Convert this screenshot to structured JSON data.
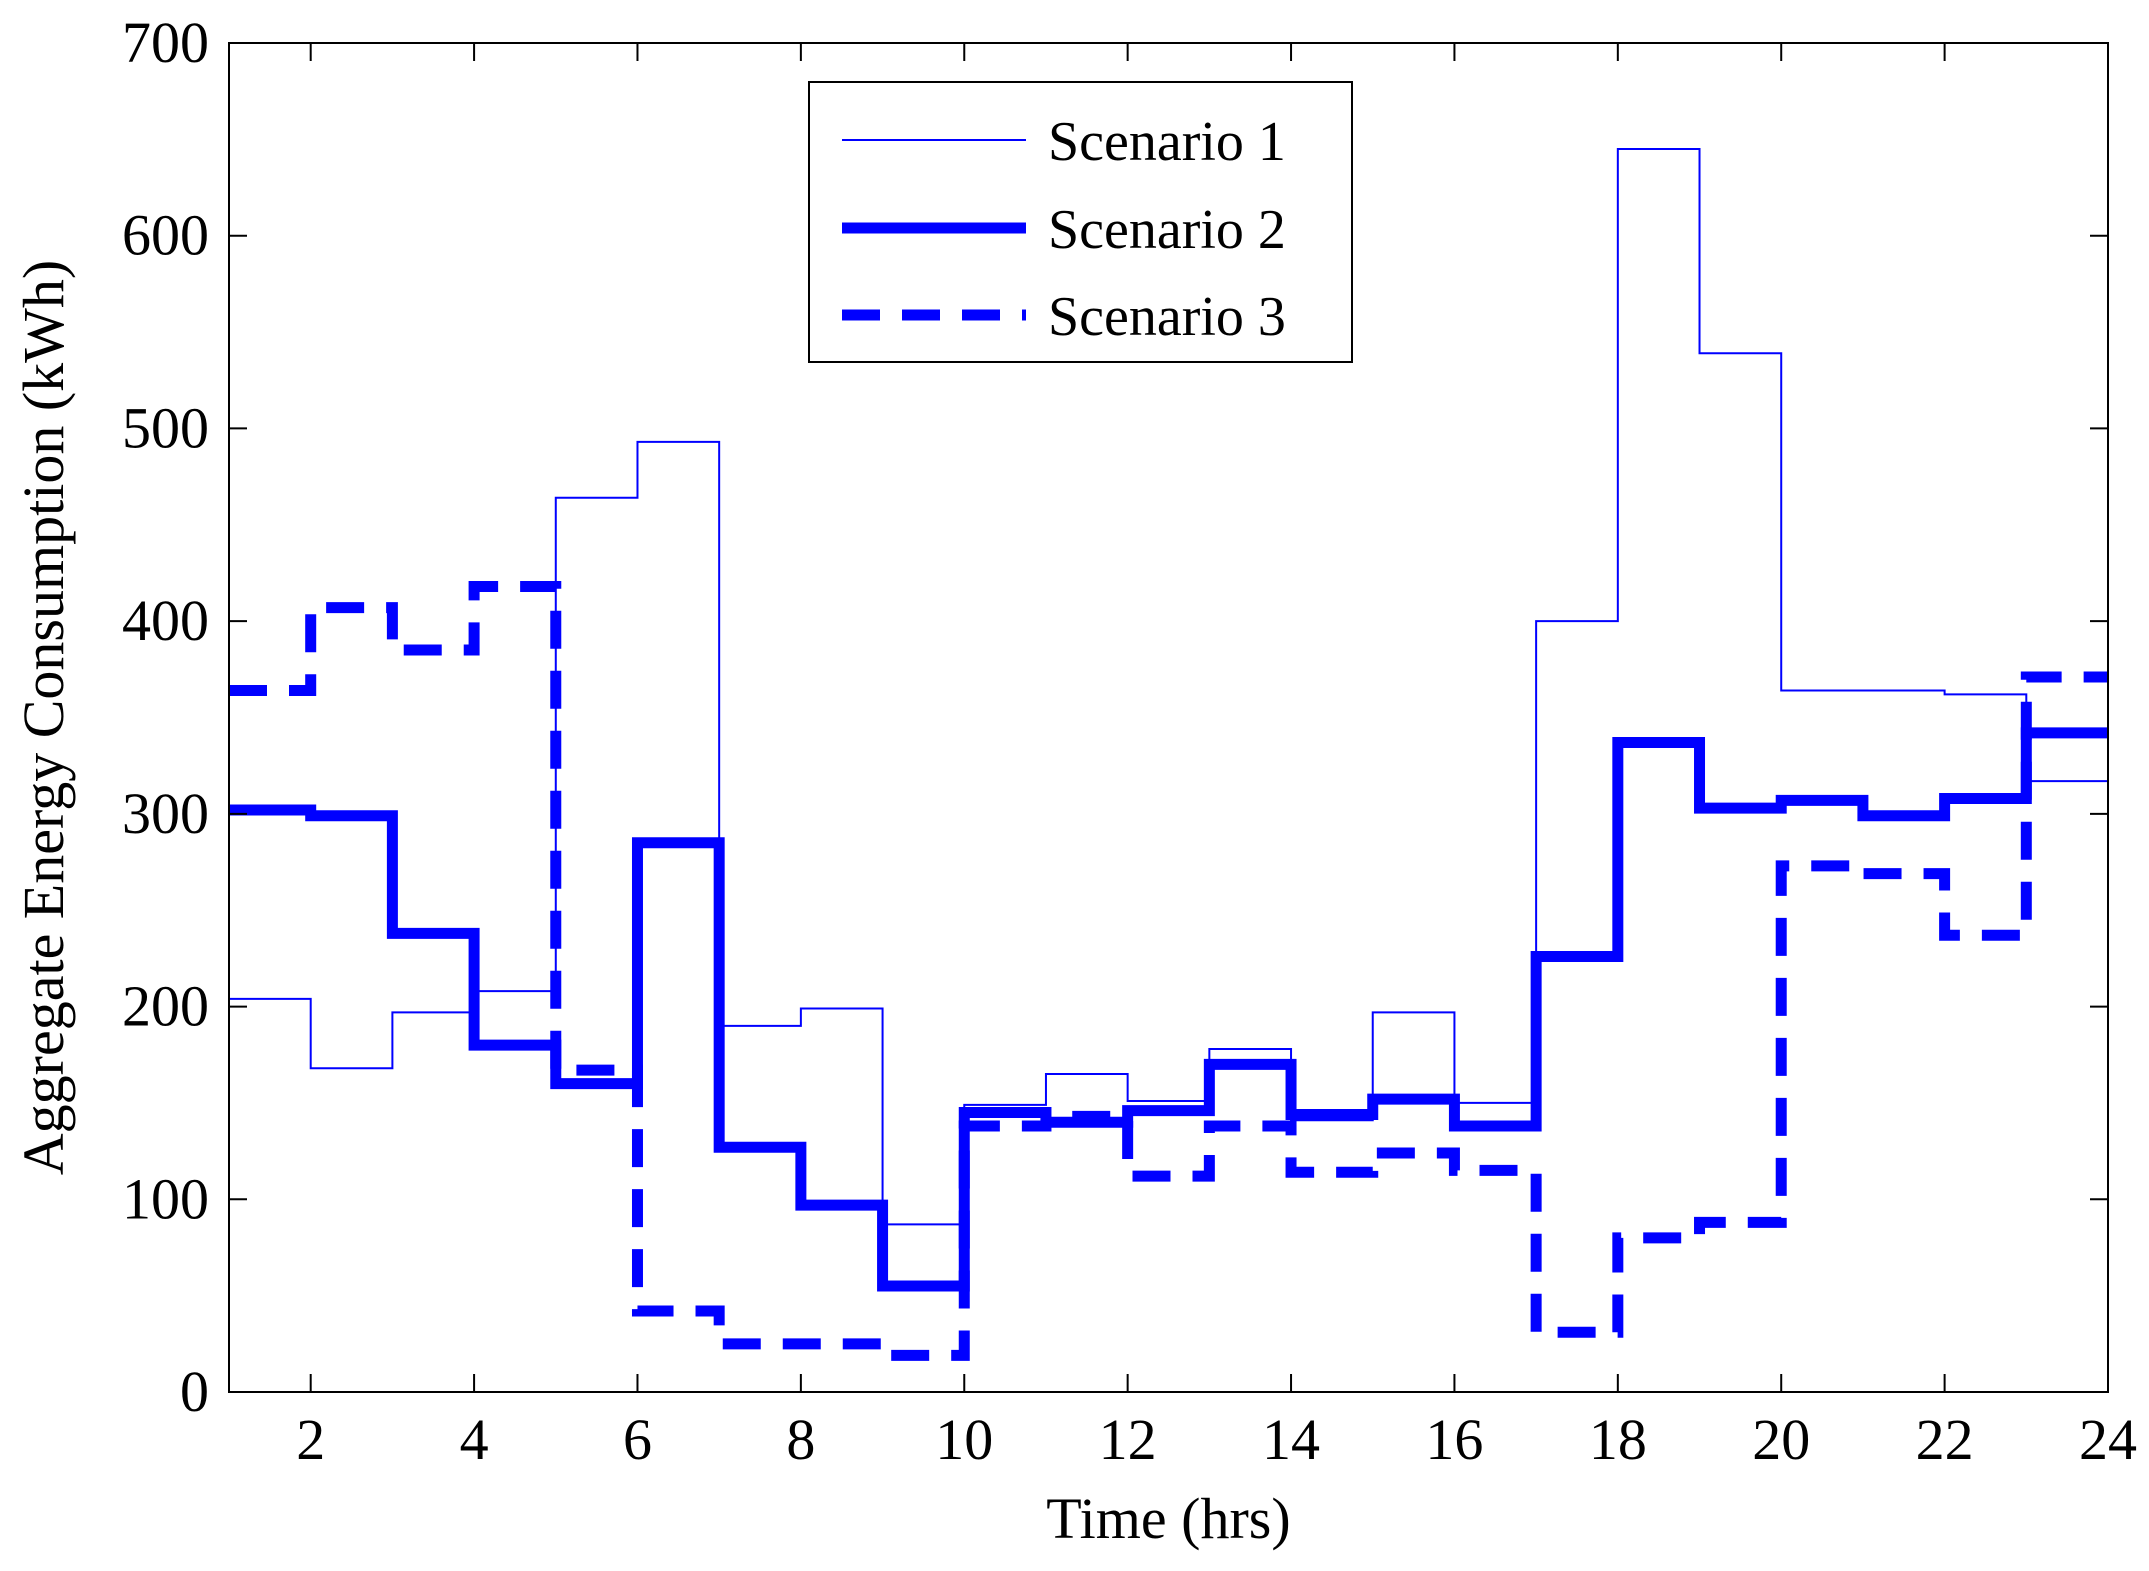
{
  "chart_data": {
    "type": "line",
    "step": true,
    "title": "",
    "xlabel": "Time (hrs)",
    "ylabel": "Aggregate Energy Consumption (kWh)",
    "xlim": [
      1,
      24
    ],
    "ylim": [
      0,
      700
    ],
    "xticks": [
      2,
      4,
      6,
      8,
      10,
      12,
      14,
      16,
      18,
      20,
      22,
      24
    ],
    "yticks": [
      0,
      100,
      200,
      300,
      400,
      500,
      600,
      700
    ],
    "xtick_labels": [
      "2",
      "4",
      "6",
      "8",
      "10",
      "12",
      "14",
      "16",
      "18",
      "20",
      "22",
      "24"
    ],
    "ytick_labels": [
      "0",
      "100",
      "200",
      "300",
      "400",
      "500",
      "600",
      "700"
    ],
    "grid": false,
    "legend_position": "top-center",
    "colors": {
      "series": "#0000ff",
      "axes": "#000000",
      "background": "#ffffff"
    },
    "series": [
      {
        "name": "Scenario 1",
        "style": "thin",
        "values": [
          204,
          168,
          197,
          208,
          464,
          493,
          190,
          199,
          87,
          149,
          165,
          151,
          178,
          141,
          197,
          150,
          400,
          645,
          539,
          364,
          364,
          362,
          317
        ]
      },
      {
        "name": "Scenario 2",
        "style": "thick",
        "values": [
          302,
          299,
          238,
          180,
          160,
          285,
          127,
          97,
          55,
          145,
          140,
          146,
          170,
          144,
          152,
          138,
          226,
          337,
          303,
          307,
          299,
          308,
          342
        ]
      },
      {
        "name": "Scenario 3",
        "style": "dashed",
        "values": [
          364,
          407,
          385,
          418,
          167,
          42,
          25,
          25,
          19,
          138,
          143,
          112,
          138,
          114,
          124,
          115,
          31,
          80,
          88,
          273,
          269,
          237,
          371
        ]
      }
    ],
    "legend": {
      "labels": [
        "Scenario 1",
        "Scenario 2",
        "Scenario 3"
      ]
    }
  }
}
